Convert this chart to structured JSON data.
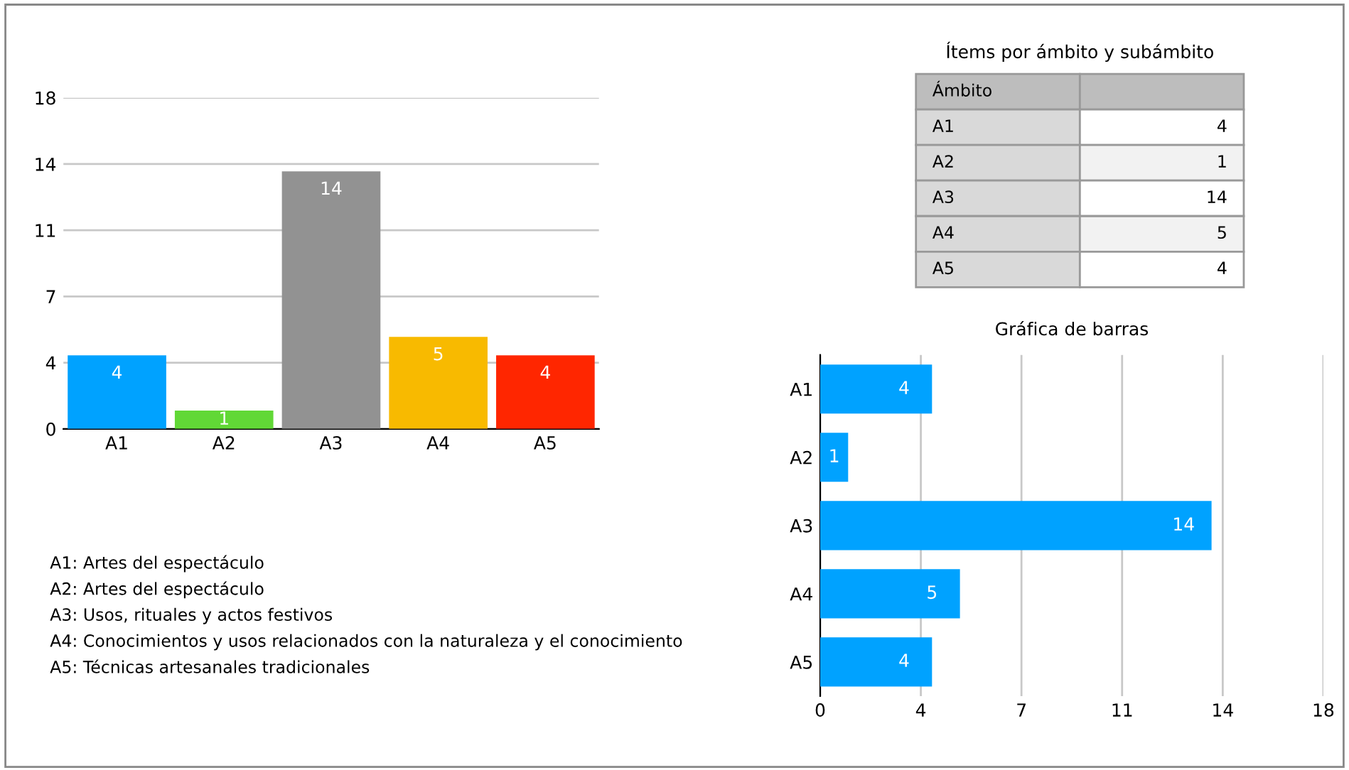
{
  "chart_data": [
    {
      "type": "bar",
      "categories": [
        "A1",
        "A2",
        "A3",
        "A4",
        "A5"
      ],
      "values": [
        4,
        1,
        14,
        5,
        4
      ],
      "colors": [
        "#00a2ff",
        "#61d836",
        "#929292",
        "#f8ba00",
        "#ff2600"
      ],
      "ylim": [
        0,
        18
      ],
      "yticks": [
        0,
        {
          "value": 3.6,
          "label": "4"
        },
        {
          "value": 7.2,
          "label": "7"
        },
        {
          "value": 10.8,
          "label": "11"
        },
        {
          "value": 14.4,
          "label": "14"
        },
        18
      ],
      "grid": "y",
      "data_labels": true,
      "annotations": [
        "A1: Artes del espectáculo",
        "A2: Artes del espectáculo",
        "A3: Usos, rituales y actos festivos",
        "A4: Conocimientos y usos relacionados con la naturaleza y el conocimiento",
        "A5: Técnicas artesanales tradicionales"
      ]
    },
    {
      "type": "other",
      "title": "Ítems por ámbito y subámbito",
      "xlabel": "Ámbito",
      "categories": [
        "A1",
        "A2",
        "A3",
        "A4",
        "A5"
      ],
      "values": [
        4,
        1,
        14,
        5,
        4
      ],
      "data_labels": true
    },
    {
      "type": "bar",
      "orientation": "horizontal",
      "title": "Gráfica de barras",
      "categories": [
        "A1",
        "A2",
        "A3",
        "A4",
        "A5"
      ],
      "values": [
        4,
        1,
        14,
        5,
        4
      ],
      "color": "#00a2ff",
      "xlim": [
        0,
        18
      ],
      "xticks": [
        0,
        {
          "value": 3.6,
          "label": "4"
        },
        {
          "value": 7.2,
          "label": "7"
        },
        {
          "value": 10.8,
          "label": "11"
        },
        {
          "value": 14.4,
          "label": "14"
        },
        18
      ],
      "grid": "x",
      "data_labels": true
    }
  ]
}
